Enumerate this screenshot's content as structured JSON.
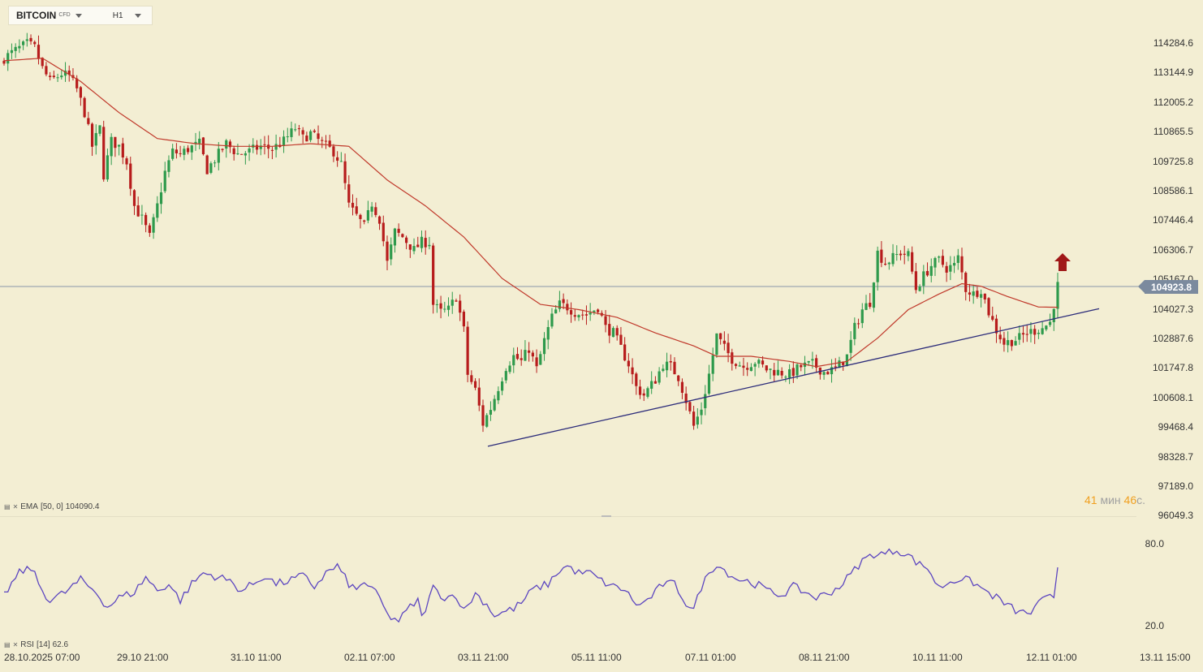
{
  "toolbar": {
    "symbol": "BITCOIN",
    "symbol_type": "CFD",
    "timeframe": "H1"
  },
  "price_axis": [
    "114284.6",
    "113144.9",
    "112005.2",
    "110865.5",
    "109725.8",
    "108586.1",
    "107446.4",
    "106306.7",
    "105167.0",
    "104027.3",
    "102887.6",
    "101747.8",
    "100608.1",
    "99468.4",
    "98328.7",
    "97189.0",
    "96049.3"
  ],
  "current_price": "104923.8",
  "timer": {
    "minutes": "41",
    "min_unit": "мин",
    "seconds": "46",
    "sec_unit": "с."
  },
  "ema": {
    "label": "EMA",
    "params": "[50, 0]",
    "value": "104090.4"
  },
  "rsi": {
    "label": "RSI",
    "params": "[14]",
    "value": "62.6",
    "axis": [
      "80.0",
      "20.0"
    ]
  },
  "date_axis": [
    "28.10.2025  07:00",
    "29.10  21:00",
    "31.10  11:00",
    "02.11  07:00",
    "03.11  21:00",
    "05.11  11:00",
    "07.11  01:00",
    "08.11  21:00",
    "10.11  11:00",
    "12.11  01:00",
    "13.11  15:00"
  ],
  "colors": {
    "bull": "#2e9a4c",
    "bear": "#b71c1c",
    "ema": "#c0392b",
    "trendline": "#2c2c7a",
    "rsi": "#5b45c0",
    "arrow": "#a01818",
    "current_price_bg": "#7b8a9e"
  },
  "signal_icon": "arrow-up-icon",
  "chart_data": {
    "type": "candlestick",
    "timeframe": "H1",
    "ylim": [
      96049.3,
      114800
    ],
    "close_path": [
      [
        0,
        113700
      ],
      [
        3,
        114000
      ],
      [
        6,
        114250
      ],
      [
        8,
        114100
      ],
      [
        10,
        113300
      ],
      [
        12,
        112800
      ],
      [
        15,
        113100
      ],
      [
        17,
        113000
      ],
      [
        19,
        112500
      ],
      [
        21,
        111600
      ],
      [
        23,
        110300
      ],
      [
        25,
        111000
      ],
      [
        26,
        109200
      ],
      [
        28,
        110500
      ],
      [
        30,
        110300
      ],
      [
        32,
        109700
      ],
      [
        34,
        108000
      ],
      [
        36,
        107500
      ],
      [
        38,
        106800
      ],
      [
        40,
        108000
      ],
      [
        42,
        109300
      ],
      [
        44,
        110100
      ],
      [
        46,
        110000
      ],
      [
        48,
        110200
      ],
      [
        51,
        110400
      ],
      [
        53,
        109400
      ],
      [
        56,
        110000
      ],
      [
        58,
        110400
      ],
      [
        61,
        110000
      ],
      [
        64,
        110100
      ],
      [
        67,
        110300
      ],
      [
        70,
        110200
      ],
      [
        73,
        110500
      ],
      [
        76,
        111000
      ],
      [
        78,
        110600
      ],
      [
        80,
        110800
      ],
      [
        83,
        110400
      ],
      [
        86,
        110100
      ],
      [
        88,
        109600
      ],
      [
        90,
        108000
      ],
      [
        92,
        107600
      ],
      [
        94,
        107200
      ],
      [
        96,
        108100
      ],
      [
        98,
        107500
      ],
      [
        100,
        105800
      ],
      [
        102,
        107000
      ],
      [
        104,
        106800
      ],
      [
        107,
        106300
      ],
      [
        109,
        106600
      ],
      [
        111,
        106600
      ],
      [
        112,
        104200
      ],
      [
        114,
        103900
      ],
      [
        116,
        104000
      ],
      [
        118,
        104500
      ],
      [
        120,
        103200
      ],
      [
        121,
        101500
      ],
      [
        123,
        100900
      ],
      [
        125,
        99600
      ],
      [
        127,
        100200
      ],
      [
        129,
        101000
      ],
      [
        131,
        101800
      ],
      [
        133,
        102200
      ],
      [
        135,
        102000
      ],
      [
        137,
        102500
      ],
      [
        139,
        101700
      ],
      [
        141,
        102800
      ],
      [
        143,
        103700
      ],
      [
        145,
        104200
      ],
      [
        147,
        104100
      ],
      [
        149,
        103900
      ],
      [
        152,
        103800
      ],
      [
        155,
        104100
      ],
      [
        157,
        103300
      ],
      [
        159,
        103100
      ],
      [
        161,
        102500
      ],
      [
        163,
        101900
      ],
      [
        165,
        101000
      ],
      [
        167,
        100700
      ],
      [
        170,
        101300
      ],
      [
        172,
        101900
      ],
      [
        174,
        101800
      ],
      [
        176,
        101400
      ],
      [
        178,
        100500
      ],
      [
        180,
        99500
      ],
      [
        182,
        100200
      ],
      [
        184,
        101500
      ],
      [
        186,
        103000
      ],
      [
        188,
        102500
      ],
      [
        190,
        102100
      ],
      [
        193,
        101800
      ],
      [
        196,
        102000
      ],
      [
        199,
        101700
      ],
      [
        202,
        101600
      ],
      [
        205,
        101500
      ],
      [
        208,
        101800
      ],
      [
        211,
        101900
      ],
      [
        214,
        101600
      ],
      [
        217,
        101700
      ],
      [
        220,
        102200
      ],
      [
        222,
        103300
      ],
      [
        224,
        104000
      ],
      [
        226,
        104300
      ],
      [
        228,
        106200
      ],
      [
        230,
        105800
      ],
      [
        232,
        106000
      ],
      [
        234,
        106200
      ],
      [
        236,
        106100
      ],
      [
        238,
        104800
      ],
      [
        240,
        105300
      ],
      [
        242,
        105700
      ],
      [
        244,
        105900
      ],
      [
        246,
        105600
      ],
      [
        248,
        105700
      ],
      [
        249,
        106000
      ],
      [
        251,
        104800
      ],
      [
        253,
        104600
      ],
      [
        255,
        104800
      ],
      [
        257,
        103900
      ],
      [
        259,
        103200
      ],
      [
        261,
        102700
      ],
      [
        263,
        102800
      ],
      [
        265,
        102900
      ],
      [
        267,
        103100
      ],
      [
        269,
        103200
      ],
      [
        271,
        103300
      ],
      [
        273,
        103500
      ],
      [
        275,
        104923.8
      ]
    ],
    "ema_path": [
      [
        0,
        113600
      ],
      [
        10,
        113700
      ],
      [
        20,
        112800
      ],
      [
        30,
        111600
      ],
      [
        40,
        110600
      ],
      [
        50,
        110400
      ],
      [
        60,
        110300
      ],
      [
        70,
        110300
      ],
      [
        80,
        110400
      ],
      [
        90,
        110300
      ],
      [
        100,
        109000
      ],
      [
        110,
        108000
      ],
      [
        120,
        106800
      ],
      [
        130,
        105200
      ],
      [
        140,
        104200
      ],
      [
        150,
        104000
      ],
      [
        160,
        103700
      ],
      [
        170,
        103100
      ],
      [
        180,
        102600
      ],
      [
        186,
        102200
      ],
      [
        195,
        102200
      ],
      [
        205,
        102000
      ],
      [
        212,
        101800
      ],
      [
        220,
        102000
      ],
      [
        228,
        102900
      ],
      [
        236,
        104000
      ],
      [
        244,
        104600
      ],
      [
        250,
        105000
      ],
      [
        255,
        104900
      ],
      [
        262,
        104500
      ],
      [
        270,
        104100
      ],
      [
        275,
        104090.4
      ]
    ],
    "trendline": {
      "from": [
        120,
        98520
      ],
      "to": [
        270,
        103510
      ]
    },
    "rsi": {
      "period": 14,
      "value": 62.6,
      "ylim": [
        0,
        100
      ],
      "levels": [
        80.0,
        20.0
      ],
      "path": [
        [
          0,
          42
        ],
        [
          4,
          58
        ],
        [
          7,
          62
        ],
        [
          10,
          45
        ],
        [
          12,
          38
        ],
        [
          16,
          44
        ],
        [
          20,
          53
        ],
        [
          24,
          44
        ],
        [
          27,
          33
        ],
        [
          30,
          40
        ],
        [
          34,
          44
        ],
        [
          37,
          55
        ],
        [
          40,
          45
        ],
        [
          43,
          50
        ],
        [
          46,
          38
        ],
        [
          49,
          50
        ],
        [
          52,
          58
        ],
        [
          56,
          55
        ],
        [
          59,
          52
        ],
        [
          62,
          45
        ],
        [
          65,
          50
        ],
        [
          68,
          56
        ],
        [
          71,
          50
        ],
        [
          74,
          52
        ],
        [
          78,
          56
        ],
        [
          81,
          48
        ],
        [
          84,
          58
        ],
        [
          87,
          63
        ],
        [
          90,
          50
        ],
        [
          92,
          45
        ],
        [
          94,
          52
        ],
        [
          98,
          40
        ],
        [
          100,
          27
        ],
        [
          103,
          23
        ],
        [
          106,
          33
        ],
        [
          108,
          38
        ],
        [
          109,
          25
        ],
        [
          112,
          47
        ],
        [
          115,
          40
        ],
        [
          118,
          42
        ],
        [
          120,
          30
        ],
        [
          123,
          43
        ],
        [
          126,
          35
        ],
        [
          128,
          27
        ],
        [
          131,
          30
        ],
        [
          133,
          32
        ],
        [
          135,
          36
        ],
        [
          138,
          46
        ],
        [
          142,
          50
        ],
        [
          145,
          60
        ],
        [
          147,
          63
        ],
        [
          150,
          58
        ],
        [
          153,
          58
        ],
        [
          156,
          52
        ],
        [
          159,
          48
        ],
        [
          162,
          46
        ],
        [
          164,
          38
        ],
        [
          166,
          34
        ],
        [
          169,
          41
        ],
        [
          172,
          50
        ],
        [
          175,
          50
        ],
        [
          178,
          36
        ],
        [
          180,
          31
        ],
        [
          182,
          48
        ],
        [
          184,
          58
        ],
        [
          186,
          65
        ],
        [
          188,
          60
        ],
        [
          191,
          54
        ],
        [
          194,
          52
        ],
        [
          197,
          49
        ],
        [
          200,
          44
        ],
        [
          203,
          42
        ],
        [
          206,
          48
        ],
        [
          209,
          44
        ],
        [
          212,
          40
        ],
        [
          215,
          43
        ],
        [
          218,
          48
        ],
        [
          221,
          57
        ],
        [
          224,
          67
        ],
        [
          227,
          72
        ],
        [
          230,
          72
        ],
        [
          233,
          75
        ],
        [
          236,
          71
        ],
        [
          239,
          64
        ],
        [
          241,
          62
        ],
        [
          244,
          47
        ],
        [
          247,
          52
        ],
        [
          250,
          54
        ],
        [
          253,
          51
        ],
        [
          256,
          45
        ],
        [
          259,
          40
        ],
        [
          262,
          34
        ],
        [
          265,
          29
        ],
        [
          268,
          29
        ],
        [
          271,
          38
        ],
        [
          274,
          41
        ],
        [
          275,
          62.6
        ]
      ]
    }
  }
}
